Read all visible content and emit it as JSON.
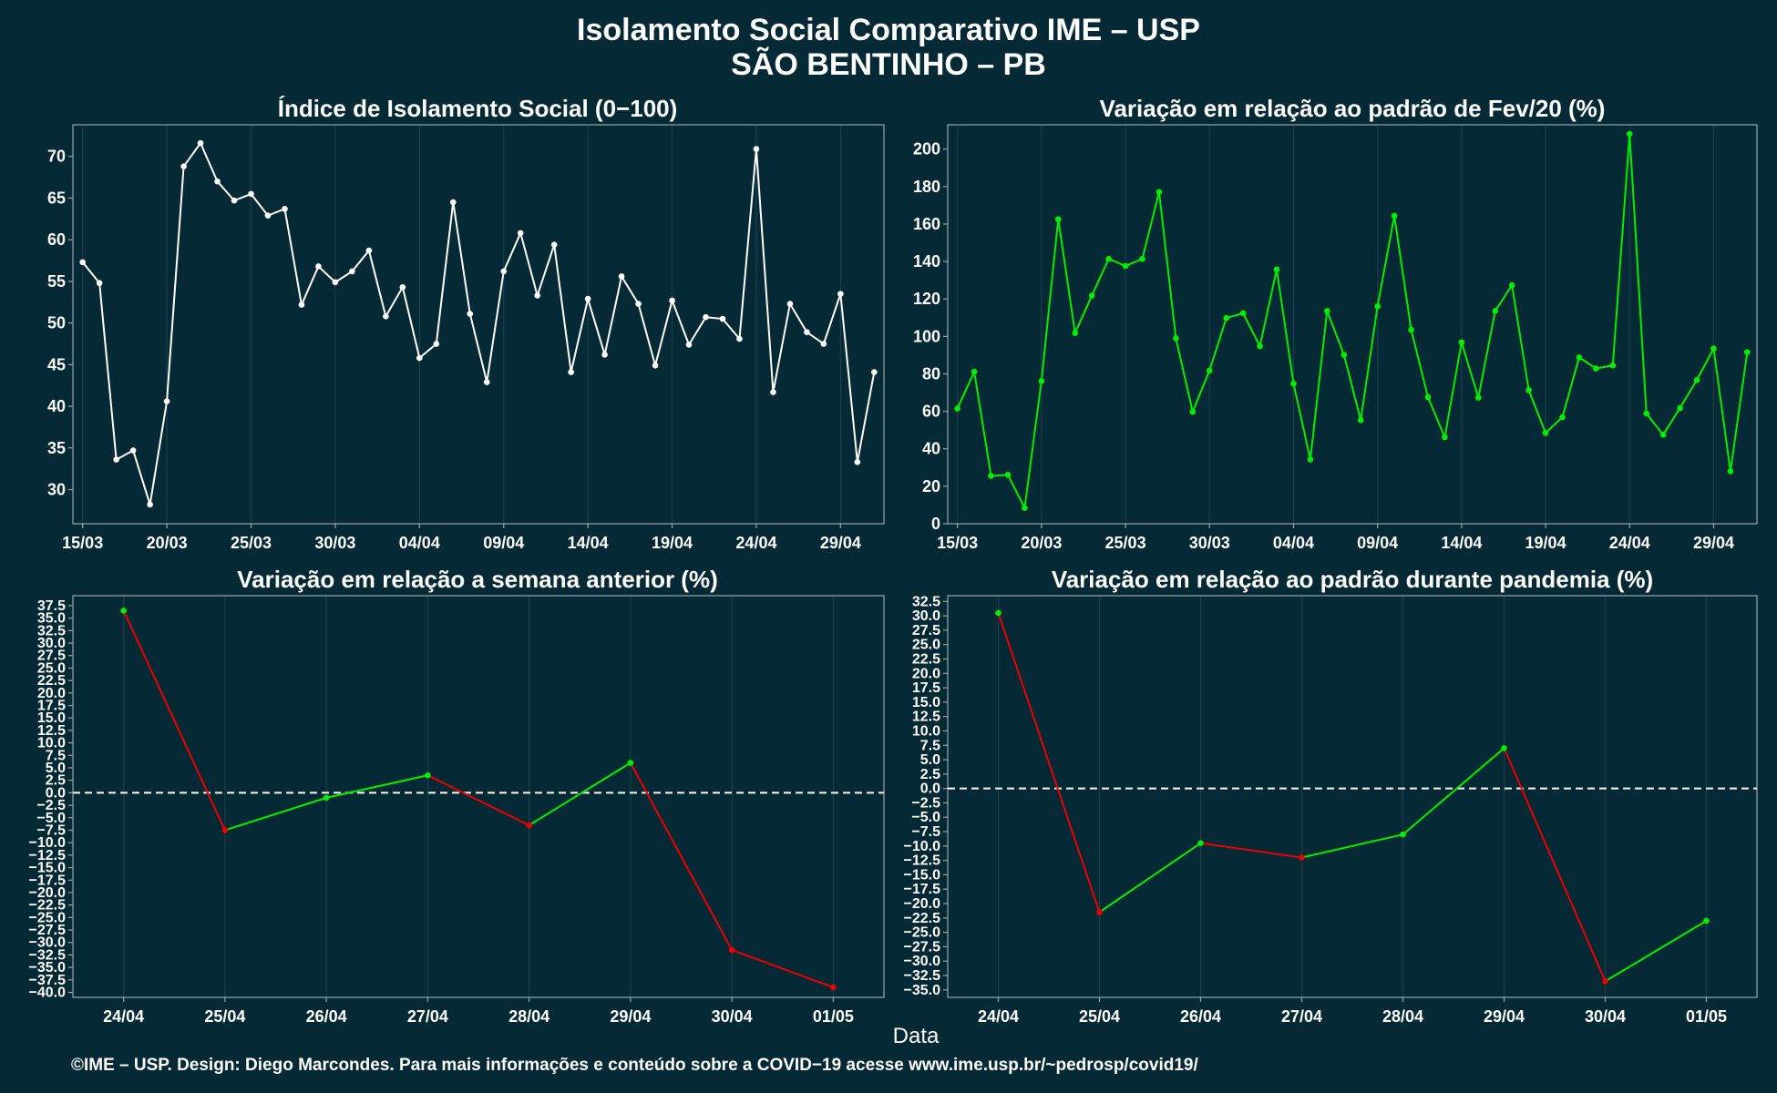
{
  "header": {
    "title": "Isolamento Social Comparativo IME – USP",
    "subtitle": "SÃO BENTINHO – PB"
  },
  "xlabel": "Data",
  "footer": "©IME – USP. Design: Diego Marcondes. Para mais informações e conteúdo sobre a COVID−19 acesse www.ime.usp.br/~pedrosp/covid19/",
  "colors": {
    "background": "#052a35",
    "index_line": "#ffffff",
    "fev_line": "#00ee00",
    "up": "#00ee00",
    "down": "#ee0000",
    "zero_line": "#ffffff"
  },
  "chart_data": [
    {
      "id": "isolamento",
      "type": "line",
      "title": "Índice de Isolamento Social (0−100)",
      "x": [
        "15/03",
        "16/03",
        "17/03",
        "18/03",
        "19/03",
        "20/03",
        "21/03",
        "22/03",
        "23/03",
        "24/03",
        "25/03",
        "26/03",
        "27/03",
        "28/03",
        "29/03",
        "30/03",
        "31/03",
        "01/04",
        "02/04",
        "03/04",
        "04/04",
        "05/04",
        "06/04",
        "07/04",
        "08/04",
        "09/04",
        "10/04",
        "11/04",
        "12/04",
        "13/04",
        "14/04",
        "15/04",
        "16/04",
        "17/04",
        "18/04",
        "19/04",
        "20/04",
        "21/04",
        "22/04",
        "23/04",
        "24/04",
        "25/04",
        "26/04",
        "27/04",
        "28/04",
        "29/04",
        "30/04",
        "01/05"
      ],
      "values": [
        57.3,
        54.8,
        33.6,
        34.7,
        28.2,
        40.6,
        68.8,
        71.6,
        67.0,
        64.7,
        65.5,
        62.9,
        63.7,
        52.2,
        56.8,
        54.9,
        56.2,
        58.7,
        50.8,
        54.3,
        45.8,
        47.5,
        64.5,
        51.1,
        42.9,
        56.2,
        60.8,
        53.3,
        59.4,
        44.1,
        52.9,
        46.2,
        55.6,
        52.3,
        44.9,
        52.7,
        47.4,
        50.7,
        50.5,
        48.1,
        70.9,
        41.7,
        52.3,
        48.9,
        47.5,
        53.5,
        33.3,
        44.1
      ],
      "xticks": [
        "15/03",
        "20/03",
        "25/03",
        "30/03",
        "04/04",
        "09/04",
        "14/04",
        "19/04",
        "24/04",
        "29/04"
      ],
      "yticks": [
        30,
        35,
        40,
        45,
        50,
        55,
        60,
        65,
        70
      ],
      "ylim": [
        25.9,
        73.8
      ],
      "grid": true
    },
    {
      "id": "fev20",
      "type": "line",
      "title": "Variação em relação ao padrão de Fev/20 (%)",
      "x": [
        "15/03",
        "16/03",
        "17/03",
        "18/03",
        "19/03",
        "20/03",
        "21/03",
        "22/03",
        "23/03",
        "24/03",
        "25/03",
        "26/03",
        "27/03",
        "28/03",
        "29/03",
        "30/03",
        "31/03",
        "01/04",
        "02/04",
        "03/04",
        "04/04",
        "05/04",
        "06/04",
        "07/04",
        "08/04",
        "09/04",
        "10/04",
        "11/04",
        "12/04",
        "13/04",
        "14/04",
        "15/04",
        "16/04",
        "17/04",
        "18/04",
        "19/04",
        "20/04",
        "21/04",
        "22/04",
        "23/04",
        "24/04",
        "25/04",
        "26/04",
        "27/04",
        "28/04",
        "29/04",
        "30/04",
        "01/05"
      ],
      "values": [
        61.5,
        81.2,
        25.5,
        26.1,
        8.4,
        76.2,
        162.6,
        101.8,
        121.8,
        141.4,
        137.6,
        141.4,
        177.1,
        99.0,
        59.8,
        81.8,
        109.8,
        112.4,
        94.8,
        135.8,
        74.8,
        34.3,
        113.6,
        90.2,
        55.3,
        116.1,
        164.4,
        103.6,
        67.6,
        46.2,
        96.9,
        67.3,
        113.6,
        127.3,
        71.3,
        48.4,
        56.9,
        88.8,
        82.9,
        84.5,
        208.1,
        58.8,
        47.5,
        61.8,
        76.7,
        93.5,
        28.0,
        91.6
      ],
      "xticks": [
        "15/03",
        "20/03",
        "25/03",
        "30/03",
        "04/04",
        "09/04",
        "14/04",
        "19/04",
        "24/04",
        "29/04"
      ],
      "yticks": [
        0,
        20,
        40,
        60,
        80,
        100,
        120,
        140,
        160,
        180,
        200
      ],
      "ylim": [
        0,
        213
      ],
      "grid": true
    },
    {
      "id": "semana",
      "type": "line",
      "title": "Variação em relação a semana anterior (%)",
      "x": [
        "24/04",
        "25/04",
        "26/04",
        "27/04",
        "28/04",
        "29/04",
        "30/04",
        "01/05"
      ],
      "values": [
        36.5,
        -7.5,
        -1.0,
        3.5,
        -6.5,
        6.0,
        -31.5,
        -39.0
      ],
      "yticks": [
        "37.5",
        "35.0",
        "32.5",
        "30.0",
        "27.5",
        "25.0",
        "22.5",
        "20.0",
        "17.5",
        "15.0",
        "12.5",
        "10.0",
        "7.5",
        "5.0",
        "2.5",
        "0.0",
        "−2.5",
        "−5.0",
        "−7.5",
        "−10.0",
        "−12.5",
        "−15.0",
        "−17.5",
        "−20.0",
        "−22.5",
        "−25.0",
        "−27.5",
        "−30.0",
        "−32.5",
        "−35.0",
        "−37.5",
        "−40.0"
      ],
      "ylim": [
        -41.0,
        39.5
      ],
      "reference_line": 0,
      "grid": true
    },
    {
      "id": "pandemia",
      "type": "line",
      "title": "Variação em relação ao padrão durante pandemia (%)",
      "x": [
        "24/04",
        "25/04",
        "26/04",
        "27/04",
        "28/04",
        "29/04",
        "30/04",
        "01/05"
      ],
      "values": [
        30.5,
        -21.5,
        -9.5,
        -12.0,
        -8.0,
        7.0,
        -33.5,
        -23.0
      ],
      "yticks": [
        "32.5",
        "30.0",
        "27.5",
        "25.0",
        "22.5",
        "20.0",
        "17.5",
        "15.0",
        "12.5",
        "10.0",
        "7.5",
        "5.0",
        "2.5",
        "0.0",
        "−2.5",
        "−5.0",
        "−7.5",
        "−10.0",
        "−12.5",
        "−15.0",
        "−17.5",
        "−20.0",
        "−22.5",
        "−25.0",
        "−27.5",
        "−30.0",
        "−32.5",
        "−35.0"
      ],
      "ylim": [
        -36.3,
        33.5
      ],
      "reference_line": 0,
      "grid": true
    }
  ]
}
